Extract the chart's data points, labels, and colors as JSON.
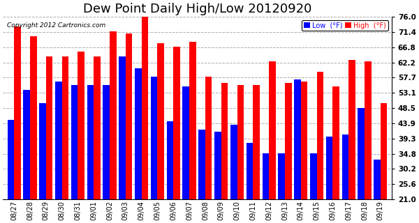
{
  "title": "Dew Point Daily High/Low 20120920",
  "copyright": "Copyright 2012 Cartronics.com",
  "dates": [
    "08/27",
    "08/28",
    "08/29",
    "08/30",
    "08/31",
    "09/01",
    "09/02",
    "09/03",
    "09/04",
    "09/05",
    "09/06",
    "09/07",
    "09/08",
    "09/09",
    "09/10",
    "09/11",
    "09/12",
    "09/13",
    "09/14",
    "09/15",
    "09/16",
    "09/17",
    "09/18",
    "09/19"
  ],
  "high": [
    73.0,
    70.0,
    64.0,
    64.0,
    65.5,
    64.0,
    71.5,
    71.0,
    76.0,
    68.0,
    67.0,
    68.5,
    58.0,
    56.0,
    55.5,
    55.5,
    62.5,
    56.0,
    56.5,
    59.5,
    55.0,
    63.0,
    62.5,
    50.0
  ],
  "low": [
    45.0,
    54.0,
    50.0,
    56.5,
    55.5,
    55.5,
    55.5,
    64.0,
    60.5,
    58.0,
    44.5,
    55.0,
    42.0,
    41.5,
    43.5,
    38.0,
    35.0,
    35.0,
    57.0,
    35.0,
    40.0,
    40.5,
    48.5,
    33.0
  ],
  "ylim": [
    21.0,
    76.0
  ],
  "yticks": [
    21.0,
    25.6,
    30.2,
    34.8,
    39.3,
    43.9,
    48.5,
    53.1,
    57.7,
    62.2,
    66.8,
    71.4,
    76.0
  ],
  "high_color": "#ff0000",
  "low_color": "#0000ff",
  "bg_color": "#ffffff",
  "grid_color": "#888888",
  "title_fontsize": 13,
  "bar_width": 0.42
}
